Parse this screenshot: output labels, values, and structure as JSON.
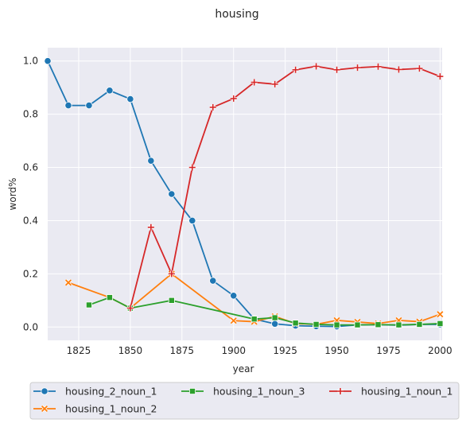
{
  "chart_data": {
    "type": "line",
    "title": "housing",
    "xlabel": "year",
    "ylabel": "word%",
    "xlim": [
      1810,
      2001
    ],
    "ylim": [
      -0.05,
      1.05
    ],
    "xticks": [
      1825,
      1850,
      1875,
      1900,
      1925,
      1950,
      1975,
      2000
    ],
    "xtick_labels": [
      "1825",
      "1850",
      "1875",
      "1900",
      "1925",
      "1950",
      "1975",
      "2000"
    ],
    "yticks": [
      0.0,
      0.2,
      0.4,
      0.6,
      0.8,
      1.0
    ],
    "ytick_labels": [
      "0.0",
      "0.2",
      "0.4",
      "0.6",
      "0.8",
      "1.0"
    ],
    "grid": true,
    "legend_position": "bottom-center",
    "series": [
      {
        "name": "housing_2_noun_1",
        "color": "#1f77b4",
        "marker": "circle",
        "x": [
          1810,
          1820,
          1830,
          1840,
          1850,
          1860,
          1870,
          1880,
          1890,
          1900,
          1910,
          1920,
          1930,
          1940,
          1950,
          1960,
          1970,
          1980,
          1990,
          2000
        ],
        "y": [
          1.0,
          0.833,
          0.833,
          0.889,
          0.857,
          0.625,
          0.5,
          0.4,
          0.174,
          0.118,
          0.03,
          0.012,
          0.005,
          0.003,
          0.002,
          0.008,
          0.009,
          0.007,
          0.01,
          0.01
        ]
      },
      {
        "name": "housing_1_noun_2",
        "color": "#ff7f0e",
        "marker": "x",
        "x": [
          1820,
          1840,
          1850,
          1870,
          1900,
          1910,
          1920,
          1930,
          1940,
          1950,
          1960,
          1970,
          1980,
          1990,
          2000
        ],
        "y": [
          0.167,
          0.111,
          0.071,
          0.2,
          0.024,
          0.02,
          0.04,
          0.013,
          0.01,
          0.025,
          0.019,
          0.013,
          0.025,
          0.02,
          0.048
        ]
      },
      {
        "name": "housing_1_noun_3",
        "color": "#2ca02c",
        "marker": "square",
        "x": [
          1830,
          1840,
          1850,
          1870,
          1910,
          1920,
          1930,
          1940,
          1950,
          1960,
          1970,
          1980,
          1990,
          2000
        ],
        "y": [
          0.083,
          0.111,
          0.071,
          0.1,
          0.03,
          0.035,
          0.015,
          0.01,
          0.008,
          0.008,
          0.009,
          0.008,
          0.01,
          0.013
        ]
      },
      {
        "name": "housing_1_noun_1",
        "color": "#d62728",
        "marker": "plus",
        "x": [
          1850,
          1860,
          1870,
          1880,
          1890,
          1900,
          1910,
          1920,
          1930,
          1940,
          1950,
          1960,
          1970,
          1980,
          1990,
          2000
        ],
        "y": [
          0.071,
          0.375,
          0.2,
          0.6,
          0.826,
          0.859,
          0.92,
          0.913,
          0.967,
          0.98,
          0.967,
          0.975,
          0.979,
          0.968,
          0.972,
          0.942
        ]
      }
    ]
  }
}
